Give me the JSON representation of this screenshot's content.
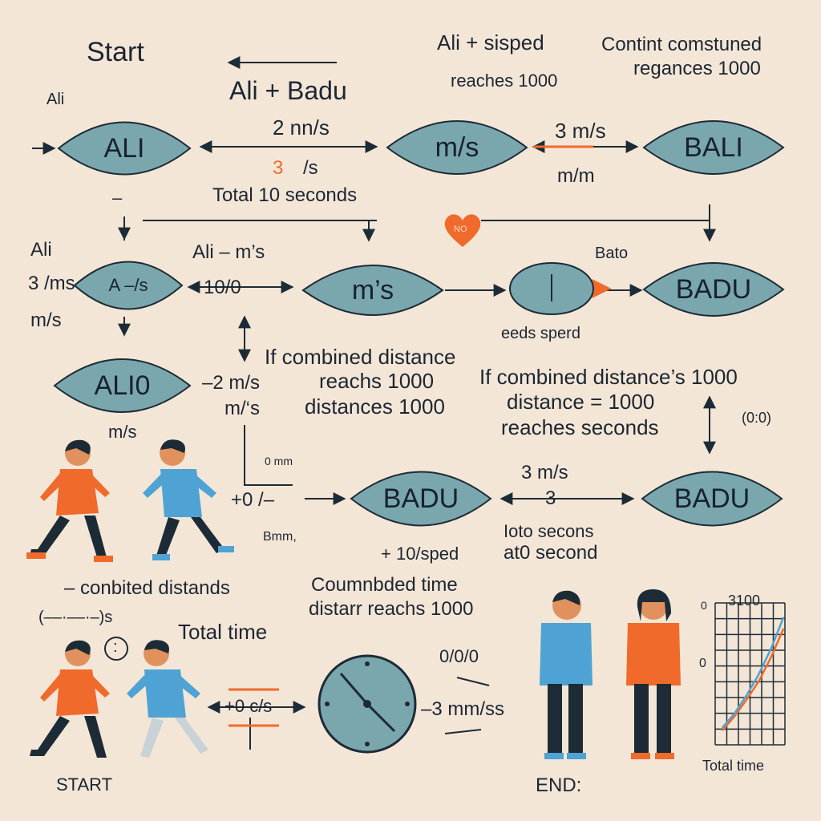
{
  "colors": {
    "background": "#f3e6d6",
    "node_fill": "#7aa7ae",
    "node_stroke": "#1d2b36",
    "accent_orange": "#f06a2b",
    "accent_blue": "#4ea3d4",
    "text": "#1c2633"
  },
  "header": {
    "start": "Start",
    "ali_corner": "Ali",
    "ali_plus_badu": "Ali + Badu",
    "ali_sisped": "Ali + sisped",
    "reaches_1000": "reaches 1000",
    "combined_line1": "Contint comstuned",
    "combined_line2": "regances 1000"
  },
  "row1": {
    "node_ali": "ALI",
    "speed_2": "2 nn/s",
    "speed_3_num": "3",
    "speed_3_unit": "/s",
    "total_10": "Total 10 seconds",
    "node_ms": "m/s",
    "speed_3ms": "3 m/s",
    "mm": "m/m",
    "node_bali": "BALI",
    "ali_dash": "–"
  },
  "row2": {
    "ali": "Ali",
    "three_ms": "3 /ms",
    "ms": "m/s",
    "node_a": "A –/s",
    "ali_ms": "Ali – m’s",
    "ten": "+10/0",
    "node_ms": "m’s",
    "heart": "NO",
    "bato": "Bato",
    "node_badu": "BADU",
    "speed_label": "eeds sperd"
  },
  "row3": {
    "node_ali0": "ALI0",
    "two_ms": "–2 m/s",
    "m_s": "m/‘s",
    "ms_under": "m/s",
    "combined1": "If combined distance",
    "combined2": "reachs 1000",
    "combined3": "distances 1000",
    "combined_r1": "If combined distance’s 1000",
    "combined_r2": "distance = 1000",
    "combined_r3": "reaches seconds",
    "small_mark": "(0:0)"
  },
  "row4": {
    "small_top": "0 mm",
    "zero": "+0 /–",
    "small_bottom": "Bmm,",
    "node_badu": "BADU",
    "three_ms": "3 m/s",
    "three": "3",
    "node_badu2": "BADU",
    "toto": "Ioto secons",
    "at0": "at0 second",
    "ten_sped": "+ 10/sped"
  },
  "row5": {
    "conbited": "– conbited distands",
    "paren": "(––·––·–)s",
    "colon_mark": ":",
    "total_time": "Total time",
    "coumbd1": "Coumnbded time",
    "coumbd2": "distarr reachs 1000",
    "speed_mid": "+0 c/s",
    "clock_top": "0/0/0",
    "three_mm": "–3 mm/ss",
    "start": "START",
    "end": "END:"
  },
  "chart": {
    "top_label": "3100",
    "y_top": "0",
    "y_mid": "0",
    "xlabel": "Total time"
  },
  "chart_data": {
    "type": "line",
    "title": "3100",
    "xlabel": "Total time",
    "ylabel": "",
    "series": [
      {
        "values": [
          0.1,
          0.2,
          0.32,
          0.45,
          0.62,
          0.82
        ]
      },
      {
        "values": [
          0.12,
          0.22,
          0.35,
          0.5,
          0.68,
          0.9
        ]
      }
    ],
    "grid": true
  }
}
